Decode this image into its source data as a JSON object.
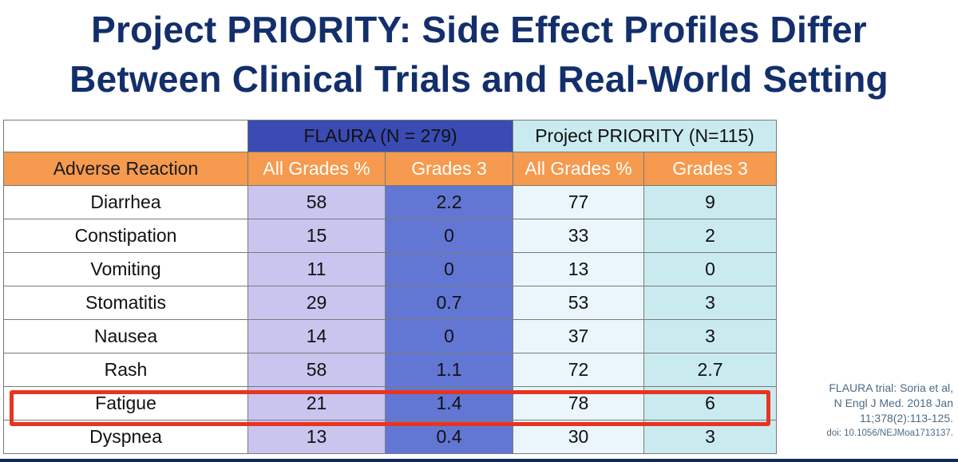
{
  "slide": {
    "title_line1": "Project PRIORITY: Side Effect Profiles Differ",
    "title_line2": "Between Clinical Trials and Real-World Setting"
  },
  "table": {
    "groups": {
      "flaura": "FLAURA (N = 279)",
      "priority": "Project PRIORITY (N=115)"
    },
    "headers": [
      "Adverse Reaction",
      "All Grades %",
      "Grades 3",
      "All Grades %",
      "Grades 3"
    ],
    "rows": [
      {
        "reaction": "Diarrhea",
        "flaura_all": "58",
        "flaura_g3": "2.2",
        "priority_all": "77",
        "priority_g3": "9"
      },
      {
        "reaction": "Constipation",
        "flaura_all": "15",
        "flaura_g3": "0",
        "priority_all": "33",
        "priority_g3": "2"
      },
      {
        "reaction": "Vomiting",
        "flaura_all": "11",
        "flaura_g3": "0",
        "priority_all": "13",
        "priority_g3": "0"
      },
      {
        "reaction": "Stomatitis",
        "flaura_all": "29",
        "flaura_g3": "0.7",
        "priority_all": "53",
        "priority_g3": "3"
      },
      {
        "reaction": "Nausea",
        "flaura_all": "14",
        "flaura_g3": "0",
        "priority_all": "37",
        "priority_g3": "3"
      },
      {
        "reaction": "Rash",
        "flaura_all": "58",
        "flaura_g3": "1.1",
        "priority_all": "72",
        "priority_g3": "2.7"
      },
      {
        "reaction": "Fatigue",
        "flaura_all": "21",
        "flaura_g3": "1.4",
        "priority_all": "78",
        "priority_g3": "6"
      },
      {
        "reaction": "Dyspnea",
        "flaura_all": "13",
        "flaura_g3": "0.4",
        "priority_all": "30",
        "priority_g3": "3"
      }
    ]
  },
  "citation": {
    "line1": "FLAURA trial: Soria et al,",
    "line2": "N Engl J Med. 2018 Jan",
    "line3": "11;378(2):113-125.",
    "doi": "doi: 10.1056/NEJMoa1713137."
  },
  "colors": {
    "title": "#132f6b",
    "header_orange": "#f59a4e",
    "flaura_group": "#3a4bb3",
    "flaura_all_col": "#c9c5ef",
    "flaura_g3_col": "#6277d4",
    "priority_all_col": "#eaf6fb",
    "priority_g3_col": "#c9ebef",
    "highlight": "#e8341f"
  }
}
